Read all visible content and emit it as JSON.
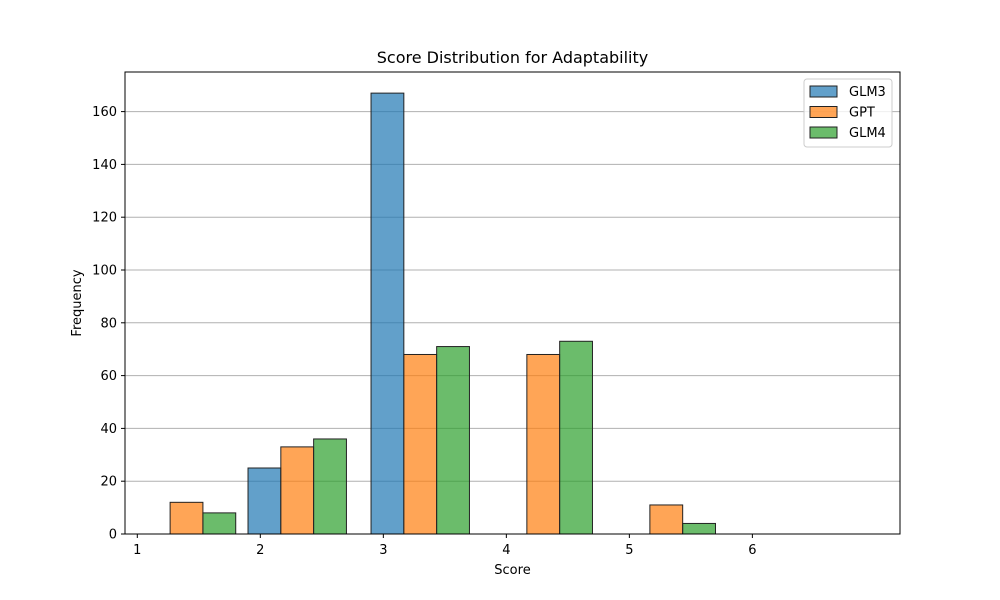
{
  "chart_data": {
    "type": "bar",
    "title": "Score Distribution for Adaptability",
    "xlabel": "Score",
    "ylabel": "Frequency",
    "xlim": [
      0.9,
      7.2
    ],
    "ylim": [
      0,
      175
    ],
    "xticks": [
      1,
      2,
      3,
      4,
      5,
      6
    ],
    "yticks": [
      0,
      20,
      40,
      60,
      80,
      100,
      120,
      140,
      160
    ],
    "grid": "y",
    "legend_position": "top-right",
    "bin_edges": [
      1.0,
      1.9,
      2.9,
      3.9,
      4.9,
      5.9,
      6.9
    ],
    "bar_width": 0.2667,
    "series": [
      {
        "name": "GLM3",
        "color": "#1f77b4",
        "values": [
          0,
          25,
          167,
          0,
          0,
          0
        ]
      },
      {
        "name": "GPT",
        "color": "#ff7f0e",
        "values": [
          12,
          33,
          68,
          68,
          11,
          0
        ]
      },
      {
        "name": "GLM4",
        "color": "#2ca02c",
        "values": [
          8,
          36,
          71,
          73,
          4,
          0
        ]
      }
    ]
  }
}
